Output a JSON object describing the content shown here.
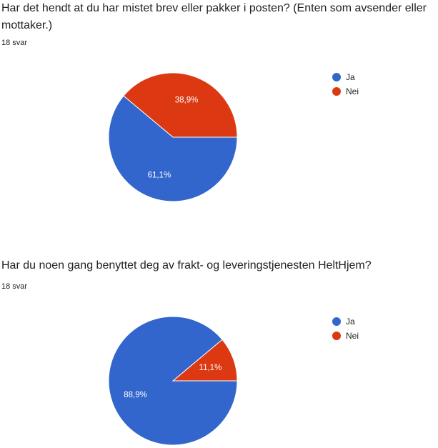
{
  "chart_data": [
    {
      "type": "pie",
      "title": "Har det hendt at du har mistet brev eller pakker i posten? (Enten som avsender eller mottaker.)",
      "response_count": "18 svar",
      "categories": [
        "Ja",
        "Nei"
      ],
      "values": [
        61.1,
        38.9
      ],
      "labels": [
        "61,1%",
        "38,9%"
      ],
      "colors": [
        "#3366cc",
        "#dc3912"
      ],
      "legend_position": "right"
    },
    {
      "type": "pie",
      "title": "Har du noen gang benyttet deg av frakt- og leveringstjenesten HeltHjem?",
      "response_count": "18 svar",
      "categories": [
        "Ja",
        "Nei"
      ],
      "values": [
        88.9,
        11.1
      ],
      "labels": [
        "88,9%",
        "11,1%"
      ],
      "colors": [
        "#3366cc",
        "#dc3912"
      ],
      "legend_position": "right"
    }
  ]
}
